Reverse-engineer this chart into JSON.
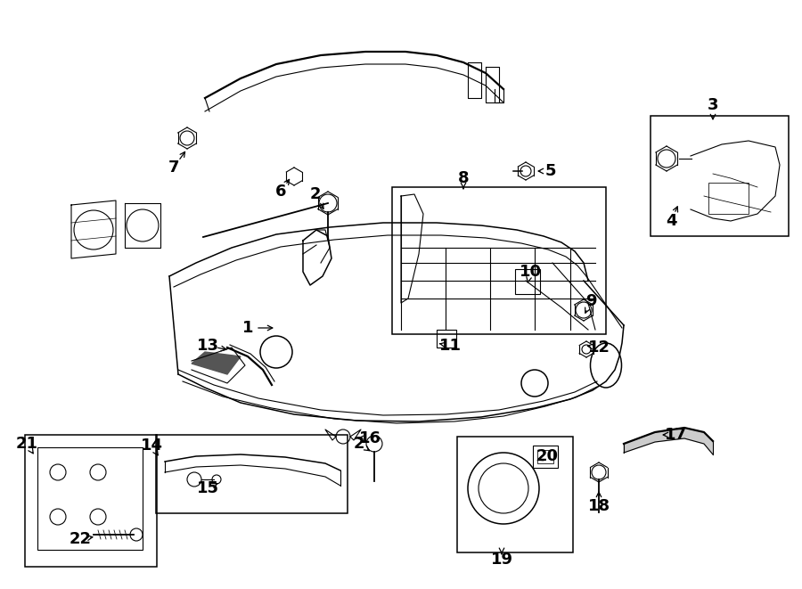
{
  "bg_color": "#ffffff",
  "line_color": "#000000",
  "lw_main": 1.5,
  "lw_thin": 0.8,
  "lw_med": 1.1,
  "figsize": [
    9.0,
    6.61
  ],
  "dpi": 100
}
